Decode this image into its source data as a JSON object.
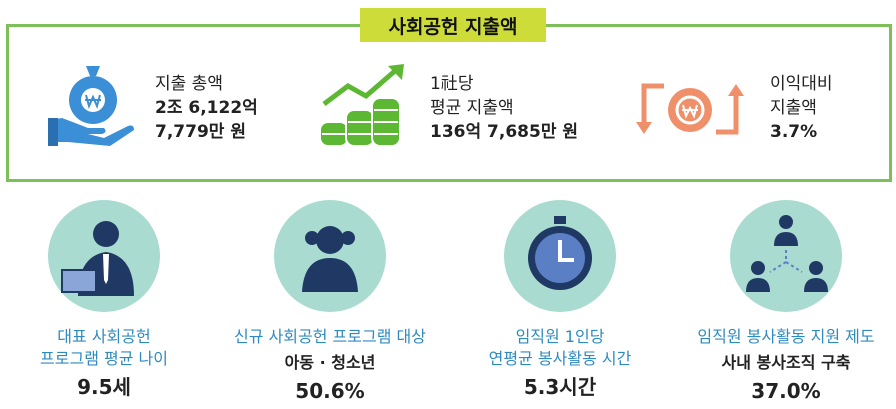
{
  "header": {
    "title": "사회공헌 지출액"
  },
  "top_stats": [
    {
      "lines": [
        "지출 총액",
        "2조 6,122억",
        "7,779만 원"
      ]
    },
    {
      "lines": [
        "1社당",
        "평균 지출액",
        "136억 7,685만 원"
      ]
    },
    {
      "lines": [
        "이익대비",
        "지출액",
        "3.7%"
      ]
    }
  ],
  "bottom_items": [
    {
      "label_lines": [
        "대표 사회공헌",
        "프로그램 평균 나이"
      ],
      "value": "9.5세"
    },
    {
      "label_lines": [
        "신규 사회공헌 프로그램 대상"
      ],
      "sub": "아동 · 청소년",
      "value": "50.6%"
    },
    {
      "label_lines": [
        "임직원 1인당",
        "연평균 봉사활동 시간"
      ],
      "value": "5.3시간"
    },
    {
      "label_lines": [
        "임직원 봉사활동 지원 제도"
      ],
      "sub": "사내 봉사조직 구축",
      "value": "37.0%"
    }
  ]
}
